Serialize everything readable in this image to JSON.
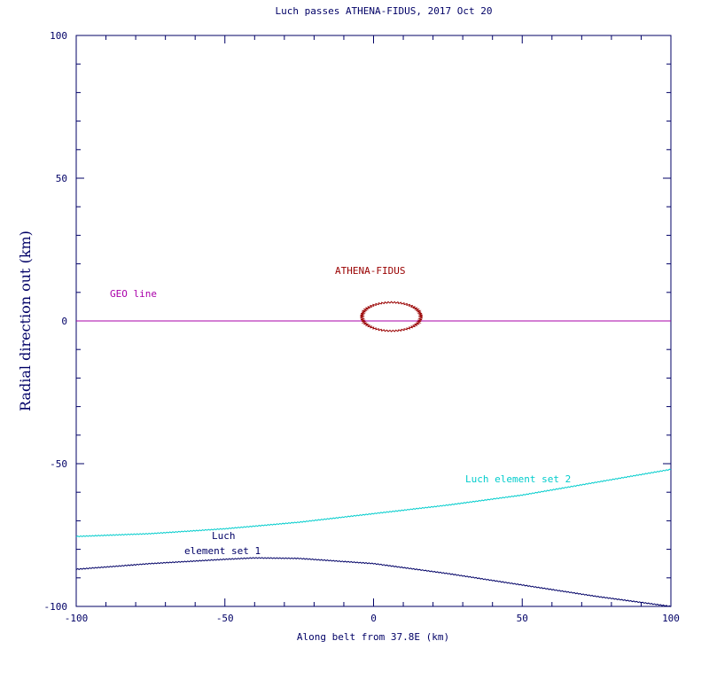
{
  "chart_data": {
    "type": "line",
    "title": "Luch passes ATHENA-FIDUS, 2017 Oct 20",
    "xlabel": "Along belt from 37.8E (km)",
    "ylabel": "Radial direction out (km)",
    "xlim": [
      -100,
      100
    ],
    "ylim": [
      -100,
      100
    ],
    "x_ticks": [
      -100,
      -50,
      0,
      50,
      100
    ],
    "y_ticks": [
      100,
      50,
      0,
      -50,
      -100
    ],
    "grid": false,
    "series": [
      {
        "name": "GEO line",
        "color": "#aa00aa",
        "x": [
          -100,
          100
        ],
        "y": [
          0,
          0
        ]
      },
      {
        "name": "Luch element set 2",
        "color": "#00cccc",
        "x": [
          -100,
          -75,
          -50,
          -25,
          0,
          25,
          50,
          75,
          100
        ],
        "y": [
          -75.5,
          -74.5,
          -72.8,
          -70.5,
          -67.5,
          -64.5,
          -61,
          -56.5,
          -52
        ]
      },
      {
        "name": "Luch element set 1",
        "color": "#000066",
        "x": [
          -100,
          -75,
          -50,
          -40,
          -25,
          0,
          25,
          50,
          75,
          100
        ],
        "y": [
          -87,
          -85,
          -83.5,
          -83,
          -83.2,
          -85,
          -88.5,
          -92.5,
          -96.5,
          -100
        ]
      }
    ],
    "objects": [
      {
        "name": "ATHENA-FIDUS",
        "color": "#990000",
        "shape": "ellipse",
        "center": [
          6,
          1.5
        ],
        "radius_x": 10,
        "radius_y": 5
      }
    ],
    "annotations": [
      {
        "text": "GEO line",
        "color": "#aa00aa"
      },
      {
        "text": "ATHENA-FIDUS",
        "color": "#990000"
      },
      {
        "text": "Luch element set 2",
        "color": "#00cccc"
      },
      {
        "text": "Luch",
        "color": "#000066"
      },
      {
        "text": "element set 1",
        "color": "#000066"
      }
    ],
    "colors": {
      "axes": "#000066",
      "title": "#000066",
      "ylabel": "#000066"
    }
  }
}
